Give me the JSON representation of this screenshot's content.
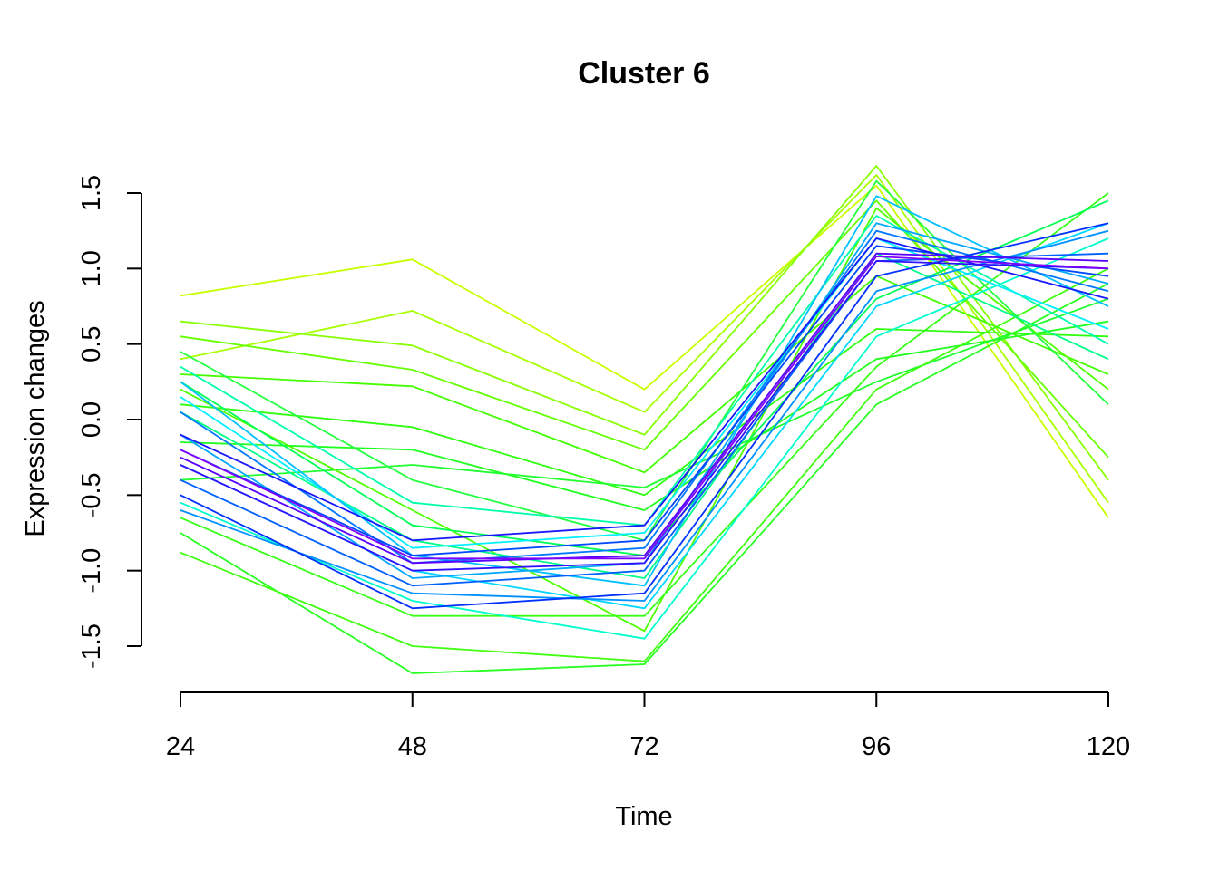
{
  "chart_data": {
    "type": "line",
    "title": "Cluster 6",
    "xlabel": "Time",
    "ylabel": "Expression changes",
    "x": [
      24,
      48,
      72,
      96,
      120
    ],
    "x_tick_labels": [
      "24",
      "48",
      "72",
      "96",
      "120"
    ],
    "y_ticks": [
      -1.5,
      -1.0,
      -0.5,
      0.0,
      0.5,
      1.0,
      1.5
    ],
    "y_tick_labels": [
      "-1.5",
      "-1.0",
      "-0.5",
      "0.0",
      "0.5",
      "1.0",
      "1.5"
    ],
    "xlim": [
      24,
      120
    ],
    "ylim": [
      -1.6,
      1.68
    ],
    "grid": false,
    "legend": "none",
    "color_scale": "membership: yellow-green (low) to purple (high)",
    "series": [
      {
        "color": "#C8FF00",
        "values": [
          0.82,
          1.06,
          0.2,
          1.55,
          -0.65
        ]
      },
      {
        "color": "#A8FF00",
        "values": [
          0.4,
          0.72,
          0.05,
          1.62,
          -0.55
        ]
      },
      {
        "color": "#88FF00",
        "values": [
          0.65,
          0.49,
          -0.1,
          1.68,
          -0.4
        ]
      },
      {
        "color": "#66FF00",
        "values": [
          0.55,
          0.33,
          -0.2,
          1.45,
          -0.25
        ]
      },
      {
        "color": "#44FF00",
        "values": [
          0.3,
          0.22,
          -0.35,
          0.95,
          0.3
        ]
      },
      {
        "color": "#30FF10",
        "values": [
          0.1,
          -0.05,
          -0.5,
          0.6,
          0.55
        ]
      },
      {
        "color": "#20FF20",
        "values": [
          -0.15,
          -0.2,
          -0.6,
          0.4,
          0.65
        ]
      },
      {
        "color": "#22FF30",
        "values": [
          -0.4,
          -0.3,
          -0.45,
          0.25,
          0.8
        ]
      },
      {
        "color": "#28FF22",
        "values": [
          -0.75,
          -1.68,
          -1.62,
          0.1,
          0.9
        ]
      },
      {
        "color": "#40FF10",
        "values": [
          -0.88,
          -1.5,
          -1.6,
          0.2,
          1.0
        ]
      },
      {
        "color": "#50FF00",
        "values": [
          0.2,
          -0.6,
          -1.4,
          1.4,
          0.2
        ]
      },
      {
        "color": "#38FF18",
        "values": [
          -0.65,
          -1.3,
          -1.3,
          0.35,
          1.5
        ]
      },
      {
        "color": "#24FF40",
        "values": [
          0.45,
          -0.4,
          -0.8,
          1.58,
          0.1
        ]
      },
      {
        "color": "#00FF55",
        "values": [
          0.25,
          -0.7,
          -0.9,
          0.8,
          1.45
        ]
      },
      {
        "color": "#00FF88",
        "values": [
          0.05,
          -0.8,
          -1.05,
          1.1,
          0.4
        ]
      },
      {
        "color": "#00FFAA",
        "values": [
          0.35,
          -0.55,
          -0.7,
          1.35,
          0.5
        ]
      },
      {
        "color": "#00FFCC",
        "values": [
          -0.55,
          -1.2,
          -1.45,
          0.55,
          1.2
        ]
      },
      {
        "color": "#00F0FF",
        "values": [
          0.15,
          -0.85,
          -0.75,
          1.2,
          0.6
        ]
      },
      {
        "color": "#00D8FF",
        "values": [
          -0.3,
          -1.0,
          -1.25,
          0.75,
          1.3
        ]
      },
      {
        "color": "#00C0FF",
        "values": [
          0.25,
          -0.9,
          -1.1,
          1.48,
          0.75
        ]
      },
      {
        "color": "#00A8FF",
        "values": [
          -0.1,
          -1.05,
          -0.95,
          1.3,
          0.9
        ]
      },
      {
        "color": "#0090FF",
        "values": [
          -0.6,
          -1.15,
          -1.2,
          0.85,
          1.25
        ]
      },
      {
        "color": "#0078FF",
        "values": [
          0.05,
          -0.95,
          -0.85,
          1.25,
          0.85
        ]
      },
      {
        "color": "#0060FF",
        "values": [
          -0.4,
          -1.1,
          -1.0,
          1.05,
          1.1
        ]
      },
      {
        "color": "#0048FF",
        "values": [
          -0.2,
          -0.9,
          -0.8,
          1.15,
          0.95
        ]
      },
      {
        "color": "#0030FF",
        "values": [
          -0.5,
          -1.25,
          -1.15,
          0.95,
          1.3
        ]
      },
      {
        "color": "#1818FF",
        "values": [
          -0.1,
          -0.8,
          -0.7,
          1.2,
          0.8
        ]
      },
      {
        "color": "#3010FF",
        "values": [
          -0.3,
          -1.0,
          -0.95,
          1.05,
          1.0
        ]
      },
      {
        "color": "#5A00FF",
        "values": [
          -0.25,
          -0.95,
          -0.9,
          1.1,
          1.05
        ]
      },
      {
        "color": "#8000FF",
        "values": [
          -0.2,
          -0.92,
          -0.92,
          1.08,
          1.0
        ]
      }
    ]
  }
}
